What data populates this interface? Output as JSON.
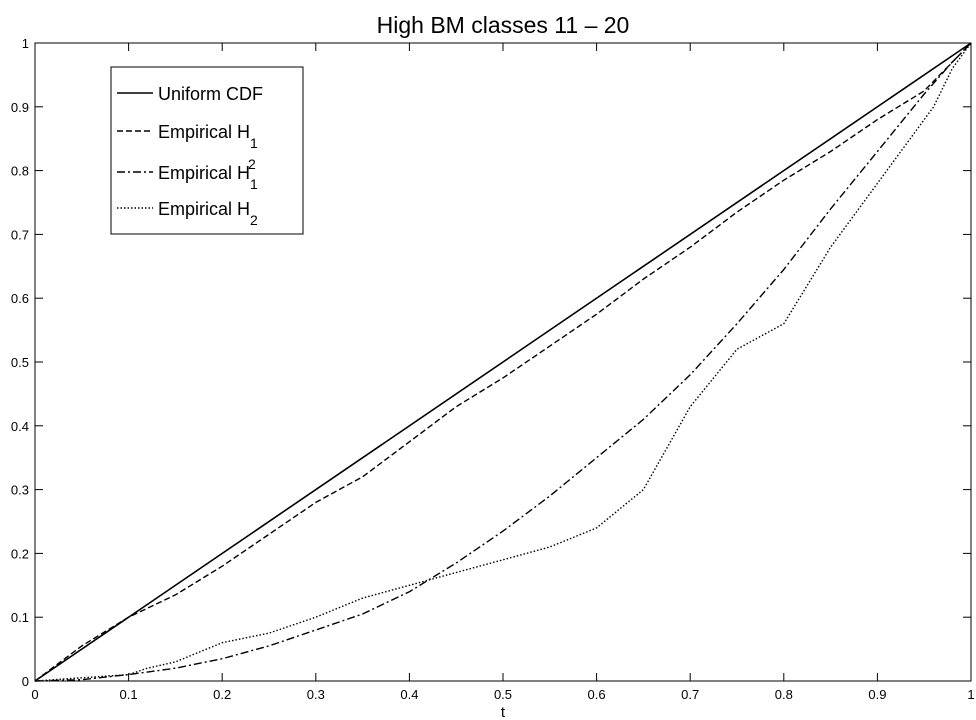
{
  "chart_data": {
    "type": "line",
    "title": "High BM classes 11 – 20",
    "xlabel": "t",
    "ylabel": "",
    "xlim": [
      0,
      1
    ],
    "ylim": [
      0,
      1
    ],
    "grid": false,
    "legend_position": "top-left",
    "xticks": [
      "0",
      "0.1",
      "0.2",
      "0.3",
      "0.4",
      "0.5",
      "0.6",
      "0.7",
      "0.8",
      "0.9",
      "1"
    ],
    "yticks": [
      "0",
      "0.1",
      "0.2",
      "0.3",
      "0.4",
      "0.5",
      "0.6",
      "0.7",
      "0.8",
      "0.9",
      "1"
    ],
    "series": [
      {
        "name": "Uniform CDF",
        "legend_text": "Uniform CDF",
        "legend_sub": "",
        "legend_sup": "",
        "style": "solid",
        "x": [
          0,
          1
        ],
        "y": [
          0,
          1
        ]
      },
      {
        "name": "Empirical H1",
        "legend_text": "Empirical H",
        "legend_sub": "1",
        "legend_sup": "",
        "style": "dashed",
        "x": [
          0,
          0.05,
          0.1,
          0.15,
          0.2,
          0.25,
          0.3,
          0.35,
          0.4,
          0.45,
          0.5,
          0.55,
          0.6,
          0.65,
          0.7,
          0.75,
          0.8,
          0.85,
          0.9,
          0.95,
          1.0
        ],
        "y": [
          0,
          0.055,
          0.1,
          0.135,
          0.18,
          0.23,
          0.28,
          0.32,
          0.375,
          0.43,
          0.475,
          0.525,
          0.575,
          0.63,
          0.68,
          0.735,
          0.785,
          0.83,
          0.88,
          0.925,
          1.0
        ]
      },
      {
        "name": "Empirical H1^2",
        "legend_text": "Empirical H",
        "legend_sub": "1",
        "legend_sup": "2",
        "style": "dashdot",
        "x": [
          0,
          0.05,
          0.1,
          0.15,
          0.2,
          0.25,
          0.3,
          0.35,
          0.4,
          0.45,
          0.5,
          0.55,
          0.6,
          0.65,
          0.7,
          0.75,
          0.8,
          0.85,
          0.9,
          0.95,
          0.98,
          1.0
        ],
        "y": [
          0,
          0.002,
          0.01,
          0.02,
          0.035,
          0.055,
          0.08,
          0.105,
          0.14,
          0.185,
          0.235,
          0.29,
          0.35,
          0.41,
          0.48,
          0.56,
          0.645,
          0.74,
          0.83,
          0.92,
          0.97,
          1.0
        ]
      },
      {
        "name": "Empirical H2",
        "legend_text": "Empirical H",
        "legend_sub": "2",
        "legend_sup": "",
        "style": "dotted",
        "x": [
          0,
          0.05,
          0.1,
          0.12,
          0.15,
          0.2,
          0.25,
          0.3,
          0.35,
          0.4,
          0.45,
          0.5,
          0.55,
          0.6,
          0.65,
          0.7,
          0.75,
          0.8,
          0.85,
          0.9,
          0.93,
          0.96,
          0.98,
          1.0
        ],
        "y": [
          0,
          0.005,
          0.01,
          0.02,
          0.03,
          0.06,
          0.075,
          0.1,
          0.13,
          0.15,
          0.17,
          0.19,
          0.21,
          0.24,
          0.3,
          0.43,
          0.52,
          0.56,
          0.68,
          0.78,
          0.84,
          0.9,
          0.96,
          1.0
        ]
      }
    ]
  }
}
